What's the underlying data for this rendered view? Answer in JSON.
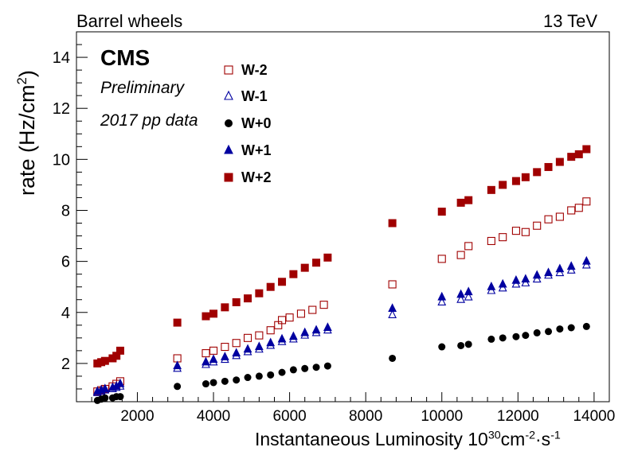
{
  "header": {
    "left": "Barrel wheels",
    "right": "13 TeV"
  },
  "annotation": {
    "experiment": "CMS",
    "status": "Preliminary",
    "dataset": "2017 pp data"
  },
  "colors": {
    "darkred": "#a00000",
    "blue": "#0000a0",
    "black": "#000000"
  },
  "chart_data": {
    "type": "scatter",
    "xlabel": "Instantaneous Luminosity 10^30 cm^-2·s^-1",
    "ylabel": "rate (Hz/cm^2)",
    "xlim": [
      400,
      14400
    ],
    "ylim": [
      0.5,
      15
    ],
    "xticks": [
      2000,
      4000,
      6000,
      8000,
      10000,
      12000,
      14000
    ],
    "yticks": [
      2,
      4,
      6,
      8,
      10,
      12,
      14
    ],
    "legend_position": "top-left",
    "series": [
      {
        "name": "W-2",
        "marker": "open-square",
        "color": "#a00000",
        "points": [
          [
            950,
            0.9
          ],
          [
            1050,
            0.95
          ],
          [
            1150,
            1.0
          ],
          [
            1350,
            1.1
          ],
          [
            1450,
            1.2
          ],
          [
            1550,
            1.3
          ],
          [
            3050,
            2.2
          ],
          [
            3800,
            2.4
          ],
          [
            4000,
            2.5
          ],
          [
            4300,
            2.65
          ],
          [
            4600,
            2.8
          ],
          [
            4900,
            3.0
          ],
          [
            5200,
            3.1
          ],
          [
            5500,
            3.3
          ],
          [
            5700,
            3.5
          ],
          [
            5800,
            3.7
          ],
          [
            6000,
            3.8
          ],
          [
            6300,
            3.95
          ],
          [
            6600,
            4.1
          ],
          [
            6900,
            4.3
          ],
          [
            8700,
            5.1
          ],
          [
            10000,
            6.1
          ],
          [
            10500,
            6.25
          ],
          [
            10700,
            6.6
          ],
          [
            11300,
            6.8
          ],
          [
            11600,
            6.95
          ],
          [
            11950,
            7.2
          ],
          [
            12200,
            7.15
          ],
          [
            12500,
            7.4
          ],
          [
            12800,
            7.65
          ],
          [
            13100,
            7.75
          ],
          [
            13400,
            8.0
          ],
          [
            13600,
            8.1
          ],
          [
            13800,
            8.35
          ]
        ]
      },
      {
        "name": "W-1",
        "marker": "open-triangle",
        "color": "#0000a0",
        "points": [
          [
            950,
            0.85
          ],
          [
            1050,
            0.9
          ],
          [
            1150,
            0.95
          ],
          [
            1350,
            1.0
          ],
          [
            1450,
            1.05
          ],
          [
            1550,
            1.1
          ],
          [
            3050,
            1.8
          ],
          [
            3800,
            1.95
          ],
          [
            4000,
            2.05
          ],
          [
            4300,
            2.15
          ],
          [
            4600,
            2.3
          ],
          [
            4900,
            2.45
          ],
          [
            5200,
            2.55
          ],
          [
            5500,
            2.7
          ],
          [
            5800,
            2.85
          ],
          [
            6100,
            2.95
          ],
          [
            6400,
            3.1
          ],
          [
            6700,
            3.2
          ],
          [
            7000,
            3.3
          ],
          [
            8700,
            3.9
          ],
          [
            10000,
            4.4
          ],
          [
            10500,
            4.5
          ],
          [
            10700,
            4.6
          ],
          [
            11300,
            4.85
          ],
          [
            11600,
            4.95
          ],
          [
            11950,
            5.1
          ],
          [
            12200,
            5.15
          ],
          [
            12500,
            5.3
          ],
          [
            12800,
            5.45
          ],
          [
            13100,
            5.55
          ],
          [
            13400,
            5.65
          ],
          [
            13800,
            5.85
          ]
        ]
      },
      {
        "name": "W+0",
        "marker": "filled-circle",
        "color": "#000000",
        "points": [
          [
            950,
            0.55
          ],
          [
            1050,
            0.6
          ],
          [
            1150,
            0.65
          ],
          [
            1350,
            0.65
          ],
          [
            1450,
            0.7
          ],
          [
            1550,
            0.7
          ],
          [
            3050,
            1.1
          ],
          [
            3800,
            1.2
          ],
          [
            4000,
            1.25
          ],
          [
            4300,
            1.3
          ],
          [
            4600,
            1.35
          ],
          [
            4900,
            1.45
          ],
          [
            5200,
            1.5
          ],
          [
            5500,
            1.55
          ],
          [
            5800,
            1.65
          ],
          [
            6100,
            1.75
          ],
          [
            6400,
            1.8
          ],
          [
            6700,
            1.85
          ],
          [
            7000,
            1.9
          ],
          [
            8700,
            2.2
          ],
          [
            10000,
            2.65
          ],
          [
            10500,
            2.7
          ],
          [
            10700,
            2.75
          ],
          [
            11300,
            2.95
          ],
          [
            11600,
            3.0
          ],
          [
            11950,
            3.05
          ],
          [
            12200,
            3.1
          ],
          [
            12500,
            3.2
          ],
          [
            12800,
            3.25
          ],
          [
            13100,
            3.35
          ],
          [
            13400,
            3.4
          ],
          [
            13800,
            3.45
          ]
        ]
      },
      {
        "name": "W+1",
        "marker": "filled-triangle",
        "color": "#0000a0",
        "points": [
          [
            950,
            0.9
          ],
          [
            1050,
            0.95
          ],
          [
            1150,
            1.0
          ],
          [
            1350,
            1.05
          ],
          [
            1450,
            1.1
          ],
          [
            1550,
            1.2
          ],
          [
            3050,
            1.9
          ],
          [
            3800,
            2.05
          ],
          [
            4000,
            2.15
          ],
          [
            4300,
            2.25
          ],
          [
            4600,
            2.4
          ],
          [
            4900,
            2.55
          ],
          [
            5200,
            2.65
          ],
          [
            5500,
            2.8
          ],
          [
            5800,
            2.95
          ],
          [
            6100,
            3.05
          ],
          [
            6400,
            3.2
          ],
          [
            6700,
            3.3
          ],
          [
            7000,
            3.4
          ],
          [
            8700,
            4.15
          ],
          [
            10000,
            4.6
          ],
          [
            10500,
            4.7
          ],
          [
            10700,
            4.8
          ],
          [
            11300,
            5.0
          ],
          [
            11600,
            5.1
          ],
          [
            11950,
            5.25
          ],
          [
            12200,
            5.3
          ],
          [
            12500,
            5.45
          ],
          [
            12800,
            5.55
          ],
          [
            13100,
            5.7
          ],
          [
            13400,
            5.8
          ],
          [
            13800,
            6.0
          ]
        ]
      },
      {
        "name": "W+2",
        "marker": "filled-square",
        "color": "#a00000",
        "points": [
          [
            950,
            2.0
          ],
          [
            1050,
            2.05
          ],
          [
            1150,
            2.1
          ],
          [
            1350,
            2.2
          ],
          [
            1450,
            2.3
          ],
          [
            1550,
            2.5
          ],
          [
            3050,
            3.6
          ],
          [
            3800,
            3.85
          ],
          [
            4000,
            3.95
          ],
          [
            4300,
            4.2
          ],
          [
            4600,
            4.4
          ],
          [
            4900,
            4.55
          ],
          [
            5200,
            4.75
          ],
          [
            5500,
            5.0
          ],
          [
            5800,
            5.2
          ],
          [
            6100,
            5.5
          ],
          [
            6400,
            5.75
          ],
          [
            6700,
            5.95
          ],
          [
            7000,
            6.15
          ],
          [
            8700,
            7.5
          ],
          [
            10000,
            7.95
          ],
          [
            10500,
            8.3
          ],
          [
            10700,
            8.4
          ],
          [
            11300,
            8.8
          ],
          [
            11600,
            9.0
          ],
          [
            11950,
            9.15
          ],
          [
            12200,
            9.3
          ],
          [
            12500,
            9.5
          ],
          [
            12800,
            9.7
          ],
          [
            13100,
            9.9
          ],
          [
            13400,
            10.1
          ],
          [
            13600,
            10.2
          ],
          [
            13800,
            10.4
          ]
        ]
      }
    ]
  }
}
